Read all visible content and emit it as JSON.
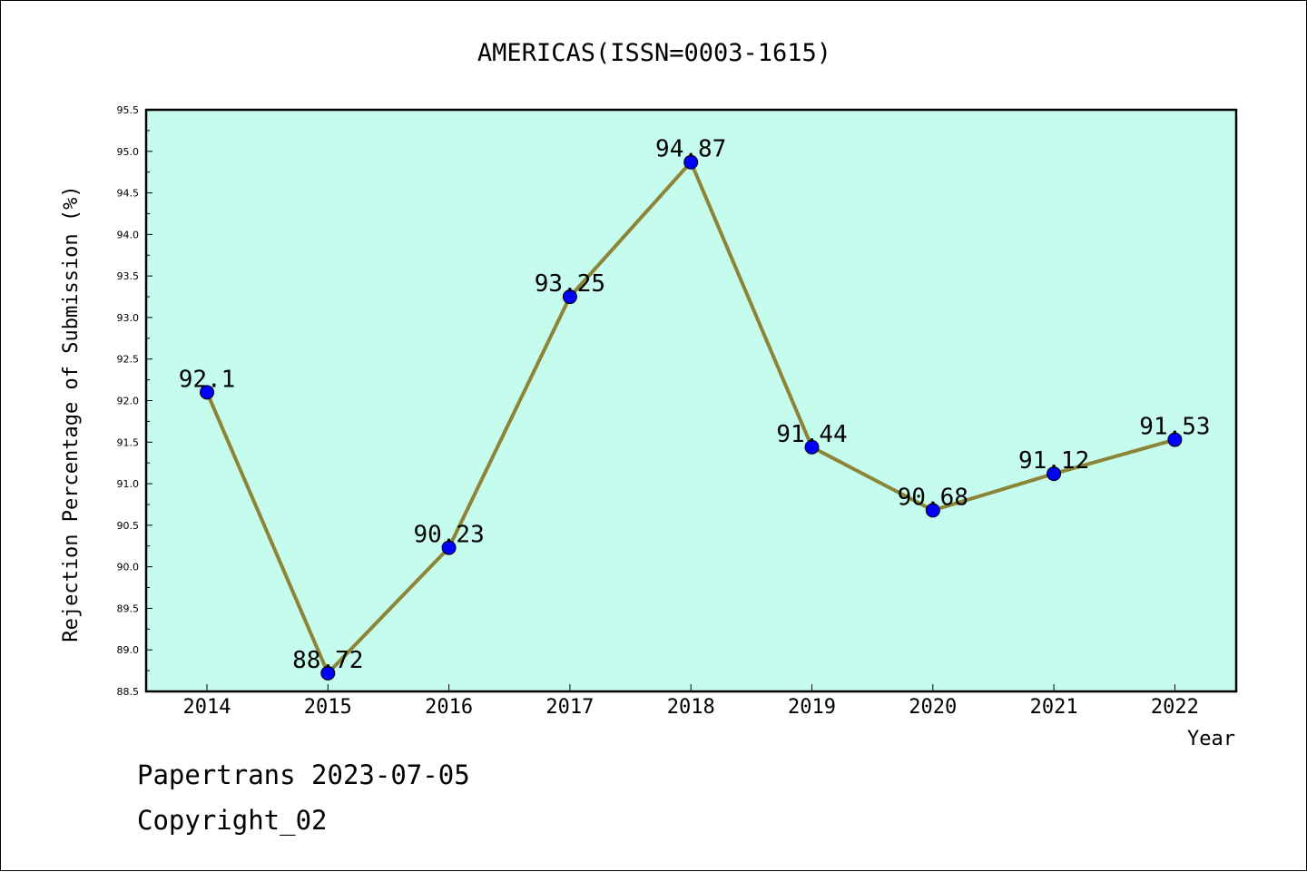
{
  "colors": {
    "plot_background": "#c6fcee",
    "line": "#8c8436",
    "marker": "#0000ff",
    "axes": "#000000"
  },
  "footer": {
    "line1": "Papertrans 2023-07-05",
    "line2": "Copyright_02"
  },
  "chart_data": {
    "type": "line",
    "title": "AMERICAS(ISSN=0003-1615)",
    "xlabel": "Year",
    "ylabel": "Rejection Percentage of Submission (%)",
    "x": [
      "2014",
      "2015",
      "2016",
      "2017",
      "2018",
      "2019",
      "2020",
      "2021",
      "2022"
    ],
    "series": [
      {
        "values": [
          92.1,
          88.72,
          90.23,
          93.25,
          94.87,
          91.44,
          90.68,
          91.12,
          91.53
        ],
        "labels": [
          "92.1",
          "88.72",
          "90.23",
          "93.25",
          "94.87",
          "91.44",
          "90.68",
          "91.12",
          "91.53"
        ]
      }
    ],
    "ylim": [
      88.5,
      95.5
    ],
    "yticks": [
      "88.5",
      "89.0",
      "89.5",
      "90.0",
      "90.5",
      "91.0",
      "91.5",
      "92.0",
      "92.5",
      "93.0",
      "93.5",
      "94.0",
      "94.5",
      "95.0",
      "95.5"
    ],
    "grid": false,
    "legend": "none"
  }
}
